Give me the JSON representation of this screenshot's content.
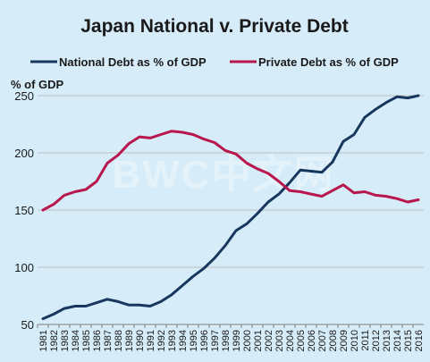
{
  "chart_data": {
    "type": "line",
    "title": "Japan National v. Private Debt",
    "ylabel": "% of GDP",
    "xlabel": "",
    "ylim": [
      50,
      250
    ],
    "yticks": [
      50,
      100,
      150,
      200,
      250
    ],
    "grid": true,
    "legend_position": "top",
    "watermark": "BWC中文网",
    "categories": [
      "1981",
      "1982",
      "1983",
      "1984",
      "1985",
      "1986",
      "1987",
      "1988",
      "1989",
      "1990",
      "1991",
      "1992",
      "1993",
      "1994",
      "1995",
      "1996",
      "1997",
      "1998",
      "1999",
      "2000",
      "2001",
      "2002",
      "2003",
      "2004",
      "2005",
      "2006",
      "2007",
      "2008",
      "2009",
      "2010",
      "2011",
      "2012",
      "2013",
      "2014",
      "2015",
      "2016"
    ],
    "series": [
      {
        "name": "National Debt as % of GDP",
        "color": "#17375e",
        "values": [
          55,
          59,
          64,
          66,
          66,
          69,
          72,
          70,
          67,
          67,
          66,
          70,
          76,
          84,
          92,
          99,
          108,
          119,
          132,
          138,
          147,
          157,
          164,
          174,
          185,
          184,
          183,
          192,
          210,
          216,
          231,
          238,
          244,
          249,
          248,
          250
        ]
      },
      {
        "name": "Private Debt as % of GDP",
        "color": "#b8174d",
        "values": [
          150,
          155,
          163,
          166,
          168,
          175,
          191,
          198,
          208,
          214,
          213,
          216,
          219,
          218,
          216,
          212,
          209,
          202,
          199,
          191,
          186,
          182,
          175,
          167,
          166,
          164,
          162,
          167,
          172,
          165,
          166,
          163,
          162,
          160,
          157,
          159
        ]
      }
    ]
  }
}
